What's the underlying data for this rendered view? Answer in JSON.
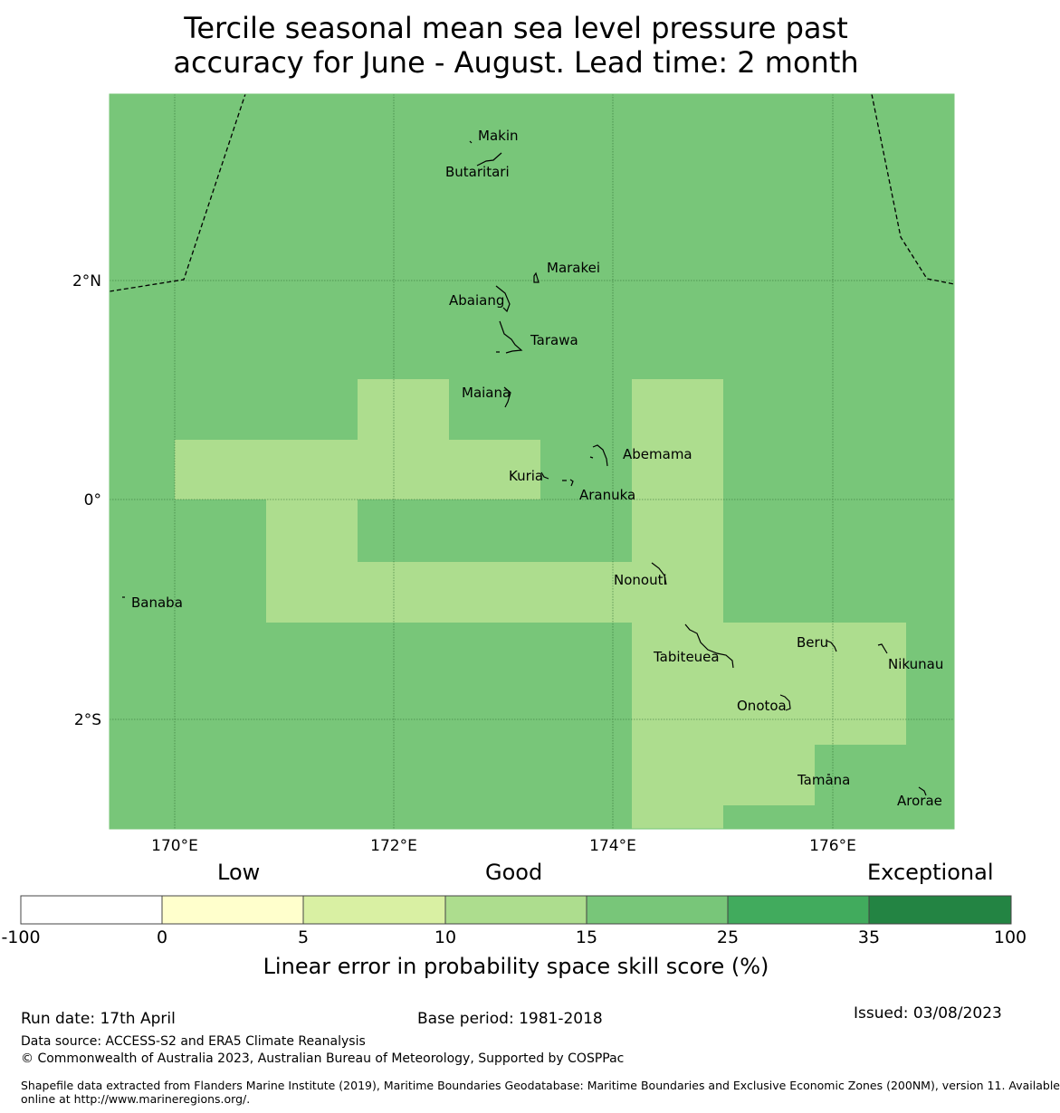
{
  "title": {
    "line1": "Tercile seasonal mean sea level pressure past",
    "line2": "accuracy for June - August. Lead time: 2 month"
  },
  "map": {
    "lon_ticks": [
      "170°E",
      "172°E",
      "174°E",
      "176°E"
    ],
    "lat_ticks": [
      "2°N",
      "0°",
      "2°S"
    ],
    "base_color": "#78c679",
    "highlight_color": "#addd8e",
    "places": [
      "Makin",
      "Butaritari",
      "Marakei",
      "Abaiang",
      "Tarawa",
      "Maiana",
      "Abemama",
      "Kuria",
      "Aranuka",
      "Nonouti",
      "Banaba",
      "Tabiteuea",
      "Beru",
      "Nikunau",
      "Onotoa",
      "Tamana",
      "Arorae"
    ]
  },
  "legend": {
    "categories": [
      "Low",
      "Good",
      "Exceptional"
    ],
    "ticks": [
      "-100",
      "0",
      "5",
      "10",
      "15",
      "25",
      "35",
      "100"
    ],
    "colors": [
      "#ffffff",
      "#ffffcc",
      "#d9f0a3",
      "#addd8e",
      "#78c679",
      "#41ab5d",
      "#238443"
    ],
    "title": "Linear error in probability space skill score (%)"
  },
  "footer": {
    "run_date": "Run date: 17th April",
    "base_period": "Base period: 1981-2018",
    "issued": "Issued: 03/08/2023",
    "data_source": "Data source: ACCESS-S2 and ERA5 Climate Reanalysis",
    "copyright": "© Commonwealth of Australia 2023, Australian Bureau of Meteorology, Supported by COSPPac",
    "shapefile_line1": "Shapefile data extracted from Flanders Marine Institute (2019), Maritime Boundaries Geodatabase: Maritime Boundaries and Exclusive Economic Zones (200NM), version 11. Available",
    "shapefile_line2": "online at http://www.marineregions.org/."
  }
}
